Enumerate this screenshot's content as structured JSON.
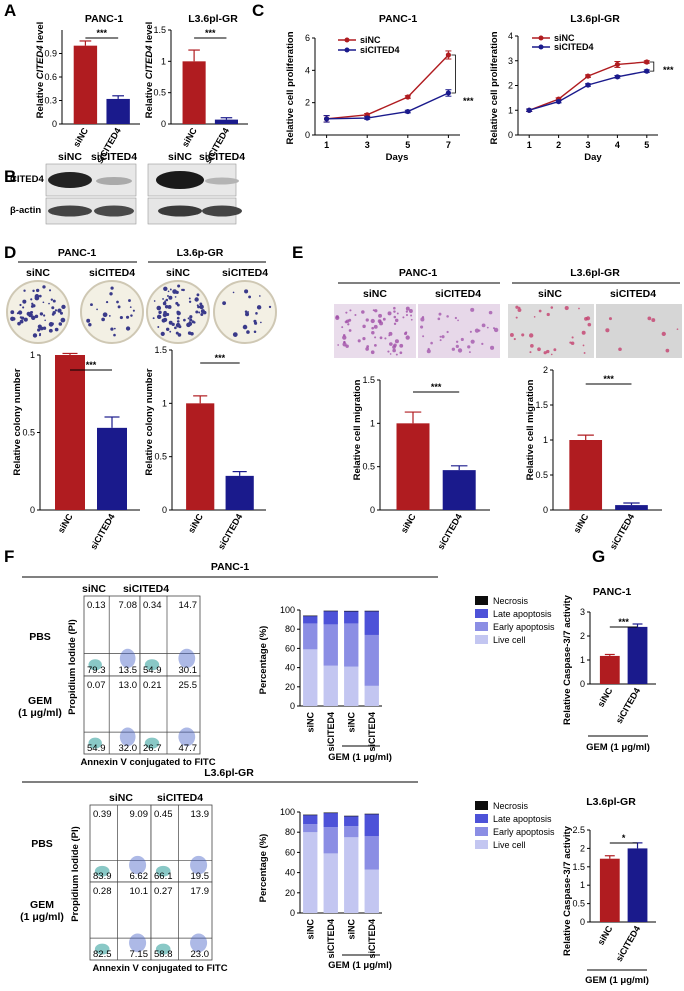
{
  "panels": {
    "A": {
      "letter": "A",
      "charts": [
        {
          "title": "PANC-1",
          "ylabel_pre": "Relative ",
          "ylabel_it": "CITED4",
          "ylabel_post": " level",
          "sig": "***"
        },
        {
          "title": "L3.6pl-GR",
          "ylabel_pre": "Relative ",
          "ylabel_it": "CITED4",
          "ylabel_post": " level",
          "sig": "***"
        }
      ]
    },
    "B": {
      "letter": "B",
      "lanes": [
        "siNC",
        "siCITED4",
        "siNC",
        "siCITED4"
      ],
      "rows": [
        "CITED4",
        "β-actin"
      ]
    },
    "C": {
      "letter": "C",
      "ylabel": "Relative cell proliferation",
      "legend": [
        "siNC",
        "siCITED4"
      ],
      "charts": [
        {
          "title": "PANC-1",
          "xlabel": "Days",
          "sig": "***"
        },
        {
          "title": "L3.6pl-GR",
          "xlabel": "Day",
          "sig": "***"
        }
      ]
    },
    "D": {
      "letter": "D",
      "groups": [
        "PANC-1",
        "L3.6p-GR"
      ],
      "lanes": [
        "siNC",
        "siCITED4",
        "siNC",
        "siCITED4"
      ],
      "ylabel": "Relative colony number",
      "sig": [
        "***",
        "***"
      ]
    },
    "E": {
      "letter": "E",
      "groups": [
        "PANC-1",
        "L3.6pl-GR"
      ],
      "lanes": [
        "siNC",
        "siCITED4",
        "siNC",
        "siCITED4"
      ],
      "ylabel": "Relative cell migration",
      "sig": [
        "***",
        "***"
      ]
    },
    "F": {
      "letter": "F",
      "blocks": [
        {
          "title": "PANC-1",
          "cols": [
            "siNC",
            "siCITED4"
          ],
          "rows": [
            "PBS",
            "GEM",
            "(1 μg/ml)"
          ],
          "plots": [
            {
              "ul": "0.13",
              "ur": "7.08",
              "ll": "79.3",
              "lr": "13.5"
            },
            {
              "ul": "0.34",
              "ur": "14.7",
              "ll": "54.9",
              "lr": "30.1"
            },
            {
              "ul": "0.07",
              "ur": "13.0",
              "ll": "54.9",
              "lr": "32.0"
            },
            {
              "ul": "0.21",
              "ur": "25.5",
              "ll": "26.7",
              "lr": "47.7"
            }
          ]
        },
        {
          "title": "L3.6pl-GR",
          "cols": [
            "siNC",
            "siCITED4"
          ],
          "rows": [
            "PBS",
            "GEM",
            "(1 μg/ml)"
          ],
          "plots": [
            {
              "ul": "0.39",
              "ur": "9.09",
              "ll": "83.9",
              "lr": "6.62"
            },
            {
              "ul": "0.45",
              "ur": "13.9",
              "ll": "66.1",
              "lr": "19.5"
            },
            {
              "ul": "0.28",
              "ur": "10.1",
              "ll": "82.5",
              "lr": "7.15"
            },
            {
              "ul": "0.27",
              "ur": "17.9",
              "ll": "58.8",
              "lr": "23.0"
            }
          ]
        }
      ],
      "flow_ylabel": "Propidium Iodide (PI)",
      "flow_xlabel": "Annexin V conjugated to FITC",
      "stack_ylabel": "Percentage (%)",
      "stack_legend": [
        "Necrosis",
        "Late apoptosis",
        "Early apoptosis",
        "Live cell"
      ],
      "gem_label": "GEM (1 μg/ml)"
    },
    "G": {
      "letter": "G",
      "ylabel": "Relative Caspase-3/7 activity",
      "gem_label": "GEM (1 μg/ml)",
      "charts": [
        {
          "title": "PANC-1",
          "sig": "***"
        },
        {
          "title": "L3.6pl-GR",
          "sig": "*"
        }
      ]
    }
  },
  "chart_data": [
    {
      "id": "A1",
      "type": "bar",
      "title": "PANC-1",
      "ylabel": "Relative CITED4 level",
      "categories": [
        "siNC",
        "siCITED4"
      ],
      "values": [
        1.0,
        0.32
      ],
      "errors": [
        0.06,
        0.04
      ],
      "ylim": [
        0,
        1.2
      ],
      "yticks": [
        0,
        0.3,
        0.6,
        0.9
      ],
      "colors": [
        "#b01c20",
        "#1a1a8c"
      ]
    },
    {
      "id": "A2",
      "type": "bar",
      "title": "L3.6pl-GR",
      "ylabel": "Relative CITED4 level",
      "categories": [
        "siNC",
        "siCITED4"
      ],
      "values": [
        1.0,
        0.07
      ],
      "errors": [
        0.18,
        0.03
      ],
      "ylim": [
        0,
        1.5
      ],
      "yticks": [
        0,
        0.5,
        1.0,
        1.5
      ],
      "colors": [
        "#b01c20",
        "#1a1a8c"
      ]
    },
    {
      "id": "C1",
      "type": "line",
      "title": "PANC-1",
      "xlabel": "Days",
      "ylabel": "Relative cell proliferation",
      "x": [
        1,
        3,
        5,
        7
      ],
      "ylim": [
        0,
        6
      ],
      "yticks": [
        0,
        2,
        4,
        6
      ],
      "series": [
        {
          "name": "siNC",
          "values": [
            1.0,
            1.25,
            2.35,
            4.95
          ],
          "errors": [
            0.2,
            0.08,
            0.08,
            0.25
          ],
          "color": "#b01c20"
        },
        {
          "name": "siCITED4",
          "values": [
            1.0,
            1.05,
            1.45,
            2.6
          ],
          "errors": [
            0.2,
            0.08,
            0.08,
            0.2
          ],
          "color": "#1a1a8c"
        }
      ]
    },
    {
      "id": "C2",
      "type": "line",
      "title": "L3.6pl-GR",
      "xlabel": "Day",
      "ylabel": "Relative cell proliferation",
      "x": [
        1,
        2,
        3,
        4,
        5
      ],
      "ylim": [
        0,
        4
      ],
      "yticks": [
        0,
        1,
        2,
        3,
        4
      ],
      "series": [
        {
          "name": "siNC",
          "values": [
            1.0,
            1.45,
            2.38,
            2.85,
            2.95
          ],
          "errors": [
            0.05,
            0.05,
            0.05,
            0.12,
            0.05
          ],
          "color": "#b01c20"
        },
        {
          "name": "siCITED4",
          "values": [
            1.0,
            1.35,
            2.02,
            2.35,
            2.58
          ],
          "errors": [
            0.05,
            0.05,
            0.05,
            0.05,
            0.05
          ],
          "color": "#1a1a8c"
        }
      ]
    },
    {
      "id": "D1",
      "type": "bar",
      "title": "PANC-1",
      "ylabel": "Relative colony number",
      "categories": [
        "siNC",
        "siCITED4"
      ],
      "values": [
        1.0,
        0.53
      ],
      "errors": [
        0.01,
        0.07
      ],
      "ylim": [
        0,
        1.0
      ],
      "yticks": [
        0,
        0.5,
        1.0
      ],
      "colors": [
        "#b01c20",
        "#1a1a8c"
      ]
    },
    {
      "id": "D2",
      "type": "bar",
      "title": "L3.6p-GR",
      "ylabel": "Relative colony number",
      "categories": [
        "siNC",
        "siCITED4"
      ],
      "values": [
        1.0,
        0.32
      ],
      "errors": [
        0.07,
        0.04
      ],
      "ylim": [
        0,
        1.5
      ],
      "yticks": [
        0,
        0.5,
        1.0,
        1.5
      ],
      "colors": [
        "#b01c20",
        "#1a1a8c"
      ]
    },
    {
      "id": "E1",
      "type": "bar",
      "title": "PANC-1",
      "ylabel": "Relative cell migration",
      "categories": [
        "siNC",
        "siCITED4"
      ],
      "values": [
        1.0,
        0.46
      ],
      "errors": [
        0.13,
        0.05
      ],
      "ylim": [
        0,
        1.5
      ],
      "yticks": [
        0,
        0.5,
        1.0,
        1.5
      ],
      "colors": [
        "#b01c20",
        "#1a1a8c"
      ]
    },
    {
      "id": "E2",
      "type": "bar",
      "title": "L3.6pl-GR",
      "ylabel": "Relative cell migration",
      "categories": [
        "siNC",
        "siCITED4"
      ],
      "values": [
        1.0,
        0.07
      ],
      "errors": [
        0.07,
        0.03
      ],
      "ylim": [
        0,
        2.0
      ],
      "yticks": [
        0,
        0.5,
        1.0,
        1.5,
        2.0
      ],
      "colors": [
        "#b01c20",
        "#1a1a8c"
      ]
    },
    {
      "id": "F1",
      "type": "bar",
      "stacked": true,
      "ylabel": "Percentage (%)",
      "categories": [
        "siNC",
        "siCITED4",
        "siNC",
        "siCITED4"
      ],
      "ylim": [
        0,
        100
      ],
      "yticks": [
        0,
        20,
        40,
        60,
        80,
        100
      ],
      "series": [
        {
          "name": "Live cell",
          "values": [
            59,
            42,
            41,
            21
          ],
          "color": "#c3c6f1"
        },
        {
          "name": "Early apoptosis",
          "values": [
            27,
            43,
            45,
            53
          ],
          "color": "#8b8ee4"
        },
        {
          "name": "Late apoptosis",
          "values": [
            8,
            14,
            13,
            25
          ],
          "color": "#4d52d8"
        },
        {
          "name": "Necrosis",
          "values": [
            0.2,
            0.3,
            0.1,
            0.2
          ],
          "color": "#0d0d0d"
        }
      ]
    },
    {
      "id": "F2",
      "type": "bar",
      "stacked": true,
      "ylabel": "Percentage (%)",
      "categories": [
        "siNC",
        "siCITED4",
        "siNC",
        "siCITED4"
      ],
      "ylim": [
        0,
        100
      ],
      "yticks": [
        0,
        20,
        40,
        60,
        80,
        100
      ],
      "series": [
        {
          "name": "Live cell",
          "values": [
            80,
            59,
            75,
            43
          ],
          "color": "#c3c6f1"
        },
        {
          "name": "Early apoptosis",
          "values": [
            8,
            26,
            11,
            33
          ],
          "color": "#8b8ee4"
        },
        {
          "name": "Late apoptosis",
          "values": [
            9,
            14,
            10,
            22
          ],
          "color": "#4d52d8"
        },
        {
          "name": "Necrosis",
          "values": [
            0.4,
            0.5,
            0.3,
            0.3
          ],
          "color": "#0d0d0d"
        }
      ]
    },
    {
      "id": "G1",
      "type": "bar",
      "title": "PANC-1",
      "ylabel": "Relative Caspase-3/7 activity",
      "categories": [
        "siNC",
        "siCITED4"
      ],
      "values": [
        1.17,
        2.38
      ],
      "errors": [
        0.06,
        0.12
      ],
      "ylim": [
        0,
        3
      ],
      "yticks": [
        0,
        1,
        2,
        3
      ],
      "colors": [
        "#b01c20",
        "#1a1a8c"
      ]
    },
    {
      "id": "G2",
      "type": "bar",
      "title": "L3.6pl-GR",
      "ylabel": "Relative Caspase-3/7 activity",
      "categories": [
        "siNC",
        "siCITED4"
      ],
      "values": [
        1.72,
        2.0
      ],
      "errors": [
        0.08,
        0.15
      ],
      "ylim": [
        0,
        2.5
      ],
      "yticks": [
        0,
        0.5,
        1.0,
        1.5,
        2.0,
        2.5
      ],
      "colors": [
        "#b01c20",
        "#1a1a8c"
      ]
    }
  ]
}
